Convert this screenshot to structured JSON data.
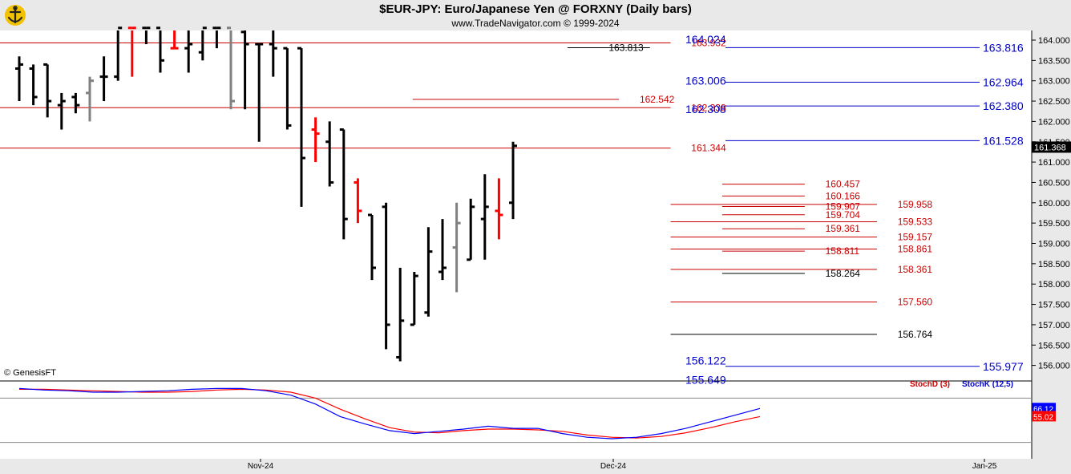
{
  "header": {
    "title": "$EUR-JPY:  Euro/Japanese Yen @ FORXNY  (Daily bars)",
    "subtitle": "www.TradeNavigator.com © 1999-2024",
    "credit": "© GenesisFT"
  },
  "colors": {
    "background": "#ffffff",
    "frame": "#e9e9e9",
    "bar_black": "#000000",
    "bar_red": "#ff0000",
    "bar_gray": "#808080",
    "blue": "#0000cc",
    "red": "#cc0000",
    "stochK": "#0000ff",
    "stochD": "#ff0000"
  },
  "chart_data": [
    {
      "type": "ohlc",
      "title": "$EUR-JPY:  Euro/Japanese Yen @ FORXNY  (Daily bars)",
      "ylim": [
        155.8,
        164.3
      ],
      "yticks": [
        "164.000",
        "163.500",
        "163.000",
        "162.500",
        "162.000",
        "161.500",
        "161.000",
        "160.500",
        "160.000",
        "159.500",
        "159.000",
        "158.500",
        "158.000",
        "157.500",
        "157.000",
        "156.500",
        "156.000"
      ],
      "xticks": [
        "Nov-24",
        "Dec-24",
        "Jan-25"
      ],
      "last_price": "161.368",
      "bars": [
        {
          "o": 163.3,
          "h": 163.6,
          "l": 162.5,
          "c": 163.4,
          "color": "black"
        },
        {
          "o": 163.3,
          "h": 163.4,
          "l": 162.4,
          "c": 162.6,
          "color": "black"
        },
        {
          "o": 163.4,
          "h": 163.4,
          "l": 162.1,
          "c": 162.5,
          "color": "black"
        },
        {
          "o": 162.4,
          "h": 162.7,
          "l": 161.8,
          "c": 162.5,
          "color": "black"
        },
        {
          "o": 162.6,
          "h": 162.7,
          "l": 162.2,
          "c": 162.4,
          "color": "black"
        },
        {
          "o": 162.7,
          "h": 163.1,
          "l": 162.0,
          "c": 163.0,
          "color": "gray"
        },
        {
          "o": 163.1,
          "h": 163.6,
          "l": 162.5,
          "c": 163.1,
          "color": "black"
        },
        {
          "o": 163.1,
          "h": 164.3,
          "l": 163.0,
          "c": 164.3,
          "color": "black"
        },
        {
          "o": 164.3,
          "h": 164.3,
          "l": 163.1,
          "c": 164.3,
          "color": "red"
        },
        {
          "o": 164.3,
          "h": 164.3,
          "l": 163.9,
          "c": 164.3,
          "color": "black"
        },
        {
          "o": 164.3,
          "h": 164.3,
          "l": 163.2,
          "c": 163.5,
          "color": "black"
        },
        {
          "o": 163.8,
          "h": 164.3,
          "l": 163.8,
          "c": 163.8,
          "color": "red"
        },
        {
          "o": 163.8,
          "h": 164.3,
          "l": 163.2,
          "c": 163.9,
          "color": "black"
        },
        {
          "o": 163.7,
          "h": 164.3,
          "l": 163.5,
          "c": 164.3,
          "color": "black"
        },
        {
          "o": 164.3,
          "h": 164.3,
          "l": 163.8,
          "c": 164.3,
          "color": "black"
        },
        {
          "o": 164.3,
          "h": 164.3,
          "l": 162.3,
          "c": 162.5,
          "color": "gray"
        },
        {
          "o": 164.2,
          "h": 164.3,
          "l": 162.3,
          "c": 163.9,
          "color": "black"
        },
        {
          "o": 163.9,
          "h": 163.9,
          "l": 161.5,
          "c": 163.9,
          "color": "black"
        },
        {
          "o": 163.9,
          "h": 164.3,
          "l": 163.1,
          "c": 163.8,
          "color": "black"
        },
        {
          "o": 163.8,
          "h": 163.8,
          "l": 161.8,
          "c": 161.9,
          "color": "black"
        },
        {
          "o": 163.8,
          "h": 163.8,
          "l": 159.9,
          "c": 161.1,
          "color": "black"
        },
        {
          "o": 161.8,
          "h": 162.1,
          "l": 161.0,
          "c": 161.7,
          "color": "red"
        },
        {
          "o": 161.5,
          "h": 162.0,
          "l": 160.4,
          "c": 160.5,
          "color": "black"
        },
        {
          "o": 161.8,
          "h": 161.8,
          "l": 159.1,
          "c": 159.6,
          "color": "black"
        },
        {
          "o": 160.5,
          "h": 160.6,
          "l": 159.5,
          "c": 159.8,
          "color": "red"
        },
        {
          "o": 159.7,
          "h": 159.7,
          "l": 158.1,
          "c": 158.4,
          "color": "black"
        },
        {
          "o": 159.9,
          "h": 160.0,
          "l": 156.4,
          "c": 157.0,
          "color": "black"
        },
        {
          "o": 156.2,
          "h": 158.4,
          "l": 156.1,
          "c": 157.1,
          "color": "black"
        },
        {
          "o": 157.0,
          "h": 158.3,
          "l": 157.0,
          "c": 158.2,
          "color": "black"
        },
        {
          "o": 157.3,
          "h": 159.4,
          "l": 157.2,
          "c": 158.8,
          "color": "black"
        },
        {
          "o": 158.3,
          "h": 159.6,
          "l": 158.1,
          "c": 158.4,
          "color": "black"
        },
        {
          "o": 158.9,
          "h": 160.0,
          "l": 157.8,
          "c": 159.5,
          "color": "gray"
        },
        {
          "o": 158.6,
          "h": 160.1,
          "l": 158.6,
          "c": 159.9,
          "color": "black"
        },
        {
          "o": 159.6,
          "h": 160.7,
          "l": 158.6,
          "c": 159.9,
          "color": "black"
        },
        {
          "o": 159.8,
          "h": 160.6,
          "l": 159.1,
          "c": 159.7,
          "color": "red"
        },
        {
          "o": 160.0,
          "h": 161.5,
          "l": 159.6,
          "c": 161.4,
          "color": "black"
        }
      ],
      "levels": [
        {
          "value": 163.932,
          "label": "163.932",
          "color": "red",
          "x1": 0.0,
          "x2": 0.65,
          "label_x": 0.67
        },
        {
          "value": 163.813,
          "label": "163.813",
          "color": "black",
          "x1": 0.55,
          "x2": 0.63,
          "label_x": 0.59
        },
        {
          "value": 162.542,
          "label": "162.542",
          "color": "red",
          "x1": 0.4,
          "x2": 0.6,
          "label_x": 0.62
        },
        {
          "value": 162.338,
          "label": "162.338",
          "color": "red",
          "x1": 0.0,
          "x2": 0.65,
          "label_x": 0.67
        },
        {
          "value": 161.344,
          "label": "161.344",
          "color": "red",
          "x1": 0.0,
          "x2": 0.65,
          "label_x": 0.67
        },
        {
          "value": 160.457,
          "label": "160.457",
          "color": "red",
          "x1": 0.7,
          "x2": 0.78,
          "label_x": 0.8
        },
        {
          "value": 160.166,
          "label": "160.166",
          "color": "red",
          "x1": 0.7,
          "x2": 0.78,
          "label_x": 0.8
        },
        {
          "value": 159.958,
          "label": "159.958",
          "color": "red",
          "x1": 0.65,
          "x2": 0.85,
          "label_x": 0.87
        },
        {
          "value": 159.907,
          "label": "159.907",
          "color": "red",
          "x1": 0.7,
          "x2": 0.78,
          "label_x": 0.8
        },
        {
          "value": 159.704,
          "label": "159.704",
          "color": "red",
          "x1": 0.7,
          "x2": 0.78,
          "label_x": 0.8
        },
        {
          "value": 159.533,
          "label": "159.533",
          "color": "red",
          "x1": 0.65,
          "x2": 0.85,
          "label_x": 0.87
        },
        {
          "value": 159.361,
          "label": "159.361",
          "color": "red",
          "x1": 0.7,
          "x2": 0.78,
          "label_x": 0.8
        },
        {
          "value": 159.157,
          "label": "159.157",
          "color": "red",
          "x1": 0.65,
          "x2": 0.85,
          "label_x": 0.87
        },
        {
          "value": 158.861,
          "label": "158.861",
          "color": "red",
          "x1": 0.65,
          "x2": 0.85,
          "label_x": 0.87
        },
        {
          "value": 158.811,
          "label": "158.811",
          "color": "red",
          "x1": 0.7,
          "x2": 0.78,
          "label_x": 0.8
        },
        {
          "value": 158.361,
          "label": "158.361",
          "color": "red",
          "x1": 0.65,
          "x2": 0.85,
          "label_x": 0.87
        },
        {
          "value": 158.264,
          "label": "158.264",
          "color": "black",
          "x1": 0.7,
          "x2": 0.78,
          "label_x": 0.8
        },
        {
          "value": 157.56,
          "label": "157.560",
          "color": "red",
          "x1": 0.65,
          "x2": 0.85,
          "label_x": 0.87
        },
        {
          "value": 156.764,
          "label": "156.764",
          "color": "black",
          "x1": 0.65,
          "x2": 0.85,
          "label_x": 0.87
        }
      ],
      "blue_levels": [
        {
          "value": 164.024,
          "label": "164.024",
          "side": "left"
        },
        {
          "value": 163.816,
          "label": "163.816",
          "side": "right"
        },
        {
          "value": 163.006,
          "label": "163.006",
          "side": "left"
        },
        {
          "value": 162.964,
          "label": "162.964",
          "side": "right"
        },
        {
          "value": 162.308,
          "label": "162.308",
          "side": "left"
        },
        {
          "value": 162.38,
          "label": "162.380",
          "side": "right"
        },
        {
          "value": 161.528,
          "label": "161.528",
          "side": "right"
        },
        {
          "value": 156.122,
          "label": "156.122",
          "side": "left"
        },
        {
          "value": 155.977,
          "label": "155.977",
          "side": "right"
        },
        {
          "value": 155.649,
          "label": "155.649",
          "side": "left"
        }
      ]
    },
    {
      "type": "line",
      "series": [
        {
          "name": "StochD (3)",
          "color": "#ff0000",
          "values": [
            92,
            92,
            91,
            90,
            89,
            88,
            88,
            89,
            91,
            92,
            91,
            88,
            80,
            65,
            52,
            40,
            34,
            33,
            36,
            38,
            38,
            37,
            35,
            30,
            27,
            26,
            28,
            33,
            40,
            48,
            55
          ]
        },
        {
          "name": "StochK (12,5)",
          "color": "#0000ff",
          "values": [
            93,
            91,
            90,
            88,
            88,
            89,
            90,
            92,
            93,
            93,
            90,
            84,
            72,
            55,
            45,
            36,
            32,
            35,
            38,
            42,
            39,
            39,
            32,
            27,
            25,
            27,
            32,
            39,
            48,
            57,
            66
          ]
        }
      ],
      "last_labels": [
        "66.12",
        "55.02"
      ]
    }
  ]
}
